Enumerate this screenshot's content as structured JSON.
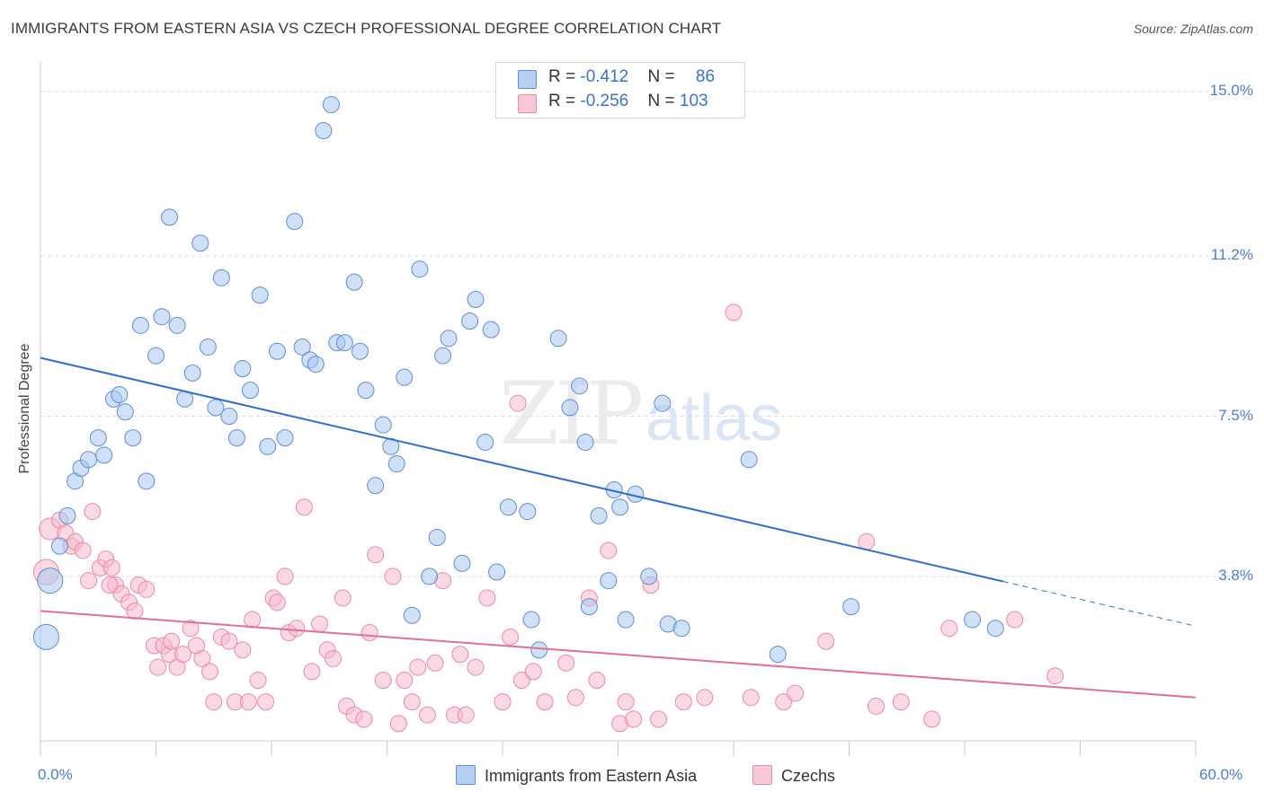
{
  "header": {
    "title": "IMMIGRANTS FROM EASTERN ASIA VS CZECH PROFESSIONAL DEGREE CORRELATION CHART",
    "source": "Source: ZipAtlas.com"
  },
  "watermark": {
    "zip": "ZIP",
    "atlas": "atlas"
  },
  "colors": {
    "blue_fill": "#a9c6ef",
    "blue_stroke": "#5b8fd6",
    "blue_line": "#2f6fcf",
    "pink_fill": "#f6b9cc",
    "pink_stroke": "#e98aa8",
    "pink_line": "#e0709a",
    "tick_text": "#4a7fd0",
    "grid": "#dddddd"
  },
  "legend": {
    "rows": [
      {
        "r_label": "R = ",
        "r_value": "-0.412",
        "n_label": "N = ",
        "n_value": "86"
      },
      {
        "r_label": "R = ",
        "r_value": "-0.256",
        "n_label": "N = ",
        "n_value": "103"
      }
    ]
  },
  "bottom_legend": {
    "items": [
      {
        "label": "Immigrants from Eastern Asia"
      },
      {
        "label": "Czechs"
      }
    ]
  },
  "chart_data": {
    "type": "scatter",
    "title": "IMMIGRANTS FROM EASTERN ASIA VS CZECH PROFESSIONAL DEGREE CORRELATION CHART",
    "xlabel": "",
    "ylabel": "Professional Degree",
    "xlim": [
      0,
      60
    ],
    "ylim": [
      0,
      15.5
    ],
    "x_tick_labels": [
      "0.0%",
      "60.0%"
    ],
    "y_ticks": [
      3.8,
      7.5,
      11.2,
      15.0
    ],
    "y_tick_labels": [
      "3.8%",
      "7.5%",
      "11.2%",
      "15.0%"
    ],
    "grid": true,
    "series": [
      {
        "name": "Immigrants from Eastern Asia",
        "r": -0.412,
        "n": 86,
        "trend": {
          "x0": 0.0,
          "y0": 8.85,
          "x1": 60.0,
          "y1": 2.65,
          "solid_until_x": 50.0
        },
        "points": [
          [
            0.3,
            2.4,
            14
          ],
          [
            0.5,
            3.7,
            14
          ],
          [
            1.0,
            4.5,
            9
          ],
          [
            1.4,
            5.2,
            9
          ],
          [
            1.8,
            6.0,
            9
          ],
          [
            2.1,
            6.3,
            9
          ],
          [
            2.5,
            6.5,
            9
          ],
          [
            3.0,
            7.0,
            9
          ],
          [
            3.3,
            6.6,
            9
          ],
          [
            3.8,
            7.9,
            9
          ],
          [
            4.1,
            8.0,
            9
          ],
          [
            4.4,
            7.6,
            9
          ],
          [
            4.8,
            7.0,
            9
          ],
          [
            5.2,
            9.6,
            9
          ],
          [
            5.5,
            6.0,
            9
          ],
          [
            6.0,
            8.9,
            9
          ],
          [
            6.3,
            9.8,
            9
          ],
          [
            6.7,
            12.1,
            9
          ],
          [
            7.1,
            9.6,
            9
          ],
          [
            7.5,
            7.9,
            9
          ],
          [
            7.9,
            8.5,
            9
          ],
          [
            8.3,
            11.5,
            9
          ],
          [
            8.7,
            9.1,
            9
          ],
          [
            9.1,
            7.7,
            9
          ],
          [
            9.4,
            10.7,
            9
          ],
          [
            9.8,
            7.5,
            9
          ],
          [
            10.2,
            7.0,
            9
          ],
          [
            10.5,
            8.6,
            9
          ],
          [
            10.9,
            8.1,
            9
          ],
          [
            11.4,
            10.3,
            9
          ],
          [
            11.8,
            6.8,
            9
          ],
          [
            12.3,
            9.0,
            9
          ],
          [
            12.7,
            7.0,
            9
          ],
          [
            13.2,
            12.0,
            9
          ],
          [
            13.6,
            9.1,
            9
          ],
          [
            14.0,
            8.8,
            9
          ],
          [
            14.3,
            8.7,
            9
          ],
          [
            14.7,
            14.1,
            9
          ],
          [
            15.1,
            14.7,
            9
          ],
          [
            15.4,
            9.2,
            9
          ],
          [
            15.8,
            9.2,
            9
          ],
          [
            16.3,
            10.6,
            9
          ],
          [
            16.6,
            9.0,
            9
          ],
          [
            16.9,
            8.1,
            9
          ],
          [
            17.4,
            5.9,
            9
          ],
          [
            17.8,
            7.3,
            9
          ],
          [
            18.2,
            6.8,
            9
          ],
          [
            18.5,
            6.4,
            9
          ],
          [
            18.9,
            8.4,
            9
          ],
          [
            19.3,
            2.9,
            9
          ],
          [
            19.7,
            10.9,
            9
          ],
          [
            20.2,
            3.8,
            9
          ],
          [
            20.6,
            4.7,
            9
          ],
          [
            20.9,
            8.9,
            9
          ],
          [
            21.2,
            9.3,
            9
          ],
          [
            21.9,
            4.1,
            9
          ],
          [
            22.3,
            9.7,
            9
          ],
          [
            22.6,
            10.2,
            9
          ],
          [
            23.1,
            6.9,
            9
          ],
          [
            23.4,
            9.5,
            9
          ],
          [
            23.7,
            3.9,
            9
          ],
          [
            24.3,
            5.4,
            9
          ],
          [
            25.3,
            5.3,
            9
          ],
          [
            25.5,
            2.8,
            9
          ],
          [
            25.9,
            2.1,
            9
          ],
          [
            26.9,
            9.3,
            9
          ],
          [
            27.5,
            7.7,
            9
          ],
          [
            28.0,
            8.2,
            9
          ],
          [
            28.3,
            6.9,
            9
          ],
          [
            28.5,
            3.1,
            9
          ],
          [
            29.0,
            5.2,
            9
          ],
          [
            29.5,
            3.7,
            9
          ],
          [
            29.8,
            5.8,
            9
          ],
          [
            30.1,
            5.4,
            9
          ],
          [
            30.4,
            2.8,
            9
          ],
          [
            30.9,
            5.7,
            9
          ],
          [
            31.6,
            3.8,
            9
          ],
          [
            32.3,
            7.8,
            9
          ],
          [
            32.6,
            2.7,
            9
          ],
          [
            33.3,
            2.6,
            9
          ],
          [
            36.8,
            6.5,
            9
          ],
          [
            38.3,
            2.0,
            9
          ],
          [
            42.1,
            3.1,
            9
          ],
          [
            48.4,
            2.8,
            9
          ],
          [
            49.6,
            2.6,
            9
          ]
        ]
      },
      {
        "name": "Czechs",
        "r": -0.256,
        "n": 103,
        "trend": {
          "x0": 0.0,
          "y0": 3.0,
          "x1": 60.0,
          "y1": 1.0,
          "solid_until_x": 60.0
        },
        "points": [
          [
            0.3,
            3.9,
            14
          ],
          [
            0.5,
            4.9,
            12
          ],
          [
            1.0,
            5.1,
            9
          ],
          [
            1.3,
            4.8,
            9
          ],
          [
            1.6,
            4.5,
            9
          ],
          [
            1.8,
            4.6,
            9
          ],
          [
            2.2,
            4.4,
            9
          ],
          [
            2.5,
            3.7,
            9
          ],
          [
            2.7,
            5.3,
            9
          ],
          [
            3.1,
            4.0,
            9
          ],
          [
            3.4,
            4.2,
            9
          ],
          [
            3.7,
            4.0,
            9
          ],
          [
            3.9,
            3.6,
            9
          ],
          [
            4.2,
            3.4,
            9
          ],
          [
            4.6,
            3.2,
            9
          ],
          [
            4.9,
            3.0,
            9
          ],
          [
            5.1,
            3.6,
            9
          ],
          [
            5.5,
            3.5,
            9
          ],
          [
            5.9,
            2.2,
            9
          ],
          [
            6.1,
            1.7,
            9
          ],
          [
            6.4,
            2.2,
            9
          ],
          [
            6.7,
            2.0,
            9
          ],
          [
            7.1,
            1.7,
            9
          ],
          [
            7.4,
            2.0,
            9
          ],
          [
            7.8,
            2.6,
            9
          ],
          [
            8.1,
            2.2,
            9
          ],
          [
            8.4,
            1.9,
            9
          ],
          [
            8.8,
            1.6,
            9
          ],
          [
            9.0,
            0.9,
            9
          ],
          [
            9.4,
            2.4,
            9
          ],
          [
            9.8,
            2.3,
            9
          ],
          [
            10.1,
            0.9,
            9
          ],
          [
            10.5,
            2.1,
            9
          ],
          [
            10.8,
            0.9,
            9
          ],
          [
            11.3,
            1.4,
            9
          ],
          [
            11.7,
            0.9,
            9
          ],
          [
            12.1,
            3.3,
            9
          ],
          [
            12.3,
            3.2,
            9
          ],
          [
            12.7,
            3.8,
            9
          ],
          [
            12.9,
            2.5,
            9
          ],
          [
            13.3,
            2.6,
            9
          ],
          [
            13.7,
            5.4,
            9
          ],
          [
            14.1,
            1.6,
            9
          ],
          [
            14.5,
            2.7,
            9
          ],
          [
            14.9,
            2.1,
            9
          ],
          [
            15.2,
            1.9,
            9
          ],
          [
            15.7,
            3.3,
            9
          ],
          [
            15.9,
            0.8,
            9
          ],
          [
            16.3,
            0.6,
            9
          ],
          [
            16.8,
            0.5,
            9
          ],
          [
            17.1,
            2.5,
            9
          ],
          [
            17.4,
            4.3,
            9
          ],
          [
            17.8,
            1.4,
            9
          ],
          [
            18.3,
            3.8,
            9
          ],
          [
            18.6,
            0.4,
            9
          ],
          [
            18.9,
            1.4,
            9
          ],
          [
            19.3,
            0.9,
            9
          ],
          [
            19.6,
            1.7,
            9
          ],
          [
            20.1,
            0.6,
            9
          ],
          [
            20.5,
            1.8,
            9
          ],
          [
            20.9,
            3.7,
            9
          ],
          [
            21.5,
            0.6,
            9
          ],
          [
            21.8,
            2.0,
            9
          ],
          [
            22.1,
            0.6,
            9
          ],
          [
            22.6,
            1.7,
            9
          ],
          [
            23.2,
            3.3,
            9
          ],
          [
            24.0,
            0.9,
            9
          ],
          [
            24.4,
            2.4,
            9
          ],
          [
            24.8,
            7.8,
            9
          ],
          [
            25.0,
            1.4,
            9
          ],
          [
            25.6,
            1.6,
            9
          ],
          [
            26.2,
            0.9,
            9
          ],
          [
            27.3,
            1.8,
            9
          ],
          [
            27.8,
            1.0,
            9
          ],
          [
            28.5,
            3.3,
            9
          ],
          [
            28.9,
            1.4,
            9
          ],
          [
            29.5,
            4.4,
            9
          ],
          [
            30.1,
            0.4,
            9
          ],
          [
            30.4,
            0.9,
            9
          ],
          [
            30.8,
            0.5,
            9
          ],
          [
            31.7,
            3.6,
            9
          ],
          [
            32.1,
            0.5,
            9
          ],
          [
            33.4,
            0.9,
            9
          ],
          [
            34.5,
            1.0,
            9
          ],
          [
            36.0,
            9.9,
            9
          ],
          [
            36.9,
            1.0,
            9
          ],
          [
            38.6,
            0.9,
            9
          ],
          [
            39.2,
            1.1,
            9
          ],
          [
            40.8,
            2.3,
            9
          ],
          [
            42.9,
            4.6,
            9
          ],
          [
            43.4,
            0.8,
            9
          ],
          [
            44.7,
            0.9,
            9
          ],
          [
            46.3,
            0.5,
            9
          ],
          [
            47.2,
            2.6,
            9
          ],
          [
            50.6,
            2.8,
            9
          ],
          [
            52.7,
            1.5,
            9
          ],
          [
            3.6,
            3.6,
            9
          ],
          [
            6.8,
            2.3,
            9
          ],
          [
            11.0,
            2.8,
            9
          ]
        ]
      }
    ]
  }
}
